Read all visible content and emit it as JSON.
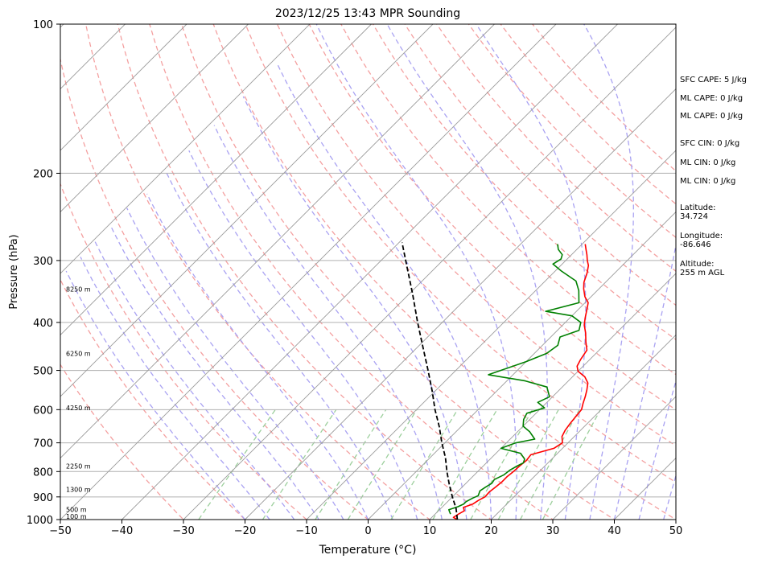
{
  "chart_data": {
    "type": "line",
    "title": "2023/12/25 13:43 MPR Sounding",
    "xlabel": "Temperature (°C)",
    "ylabel": "Pressure (hPa)",
    "xlim": [
      -50,
      50
    ],
    "ylim": [
      1000,
      100
    ],
    "y_scale": "log",
    "grid": true,
    "x_ticks": [
      "−50",
      "−40",
      "−30",
      "−20",
      "−10",
      "0",
      "10",
      "20",
      "30",
      "40",
      "50"
    ],
    "x_tick_values": [
      -50,
      -40,
      -30,
      -20,
      -10,
      0,
      10,
      20,
      30,
      40,
      50
    ],
    "y_ticks": [
      "100",
      "200",
      "300",
      "400",
      "500",
      "600",
      "700",
      "800",
      "900",
      "1000"
    ],
    "y_tick_values": [
      100,
      200,
      300,
      400,
      500,
      600,
      700,
      800,
      900,
      1000
    ],
    "height_labels": [
      {
        "text": "100 m",
        "p": 985
      },
      {
        "text": "500 m",
        "p": 955
      },
      {
        "text": "1300 m",
        "p": 870
      },
      {
        "text": "2250 m",
        "p": 780
      },
      {
        "text": "4250 m",
        "p": 595
      },
      {
        "text": "6250 m",
        "p": 462
      },
      {
        "text": "8250 m",
        "p": 343
      }
    ],
    "series": [
      {
        "color": "#ff0000",
        "points": [
          [
            14.5,
            1000
          ],
          [
            13.5,
            990
          ],
          [
            13.8,
            975
          ],
          [
            14.2,
            960
          ],
          [
            13.5,
            945
          ],
          [
            14.5,
            930
          ],
          [
            14.8,
            915
          ],
          [
            15.3,
            900
          ],
          [
            15.2,
            880
          ],
          [
            15.4,
            860
          ],
          [
            15.6,
            840
          ],
          [
            15.6,
            820
          ],
          [
            15.8,
            800
          ],
          [
            15.9,
            780
          ],
          [
            16.1,
            760
          ],
          [
            15.9,
            740
          ],
          [
            18.6,
            718
          ],
          [
            19.1,
            700
          ],
          [
            18.0,
            680
          ],
          [
            17.5,
            660
          ],
          [
            17.2,
            640
          ],
          [
            17.0,
            620
          ],
          [
            16.8,
            600
          ],
          [
            16.0,
            582
          ],
          [
            15.3,
            565
          ],
          [
            14.5,
            548
          ],
          [
            13.5,
            530
          ],
          [
            12.0,
            515
          ],
          [
            10.0,
            502
          ],
          [
            9.0,
            490
          ],
          [
            8.5,
            475
          ],
          [
            8.0,
            455
          ],
          [
            6.5,
            438
          ],
          [
            5.0,
            420
          ],
          [
            3.5,
            405
          ],
          [
            2.5,
            392
          ],
          [
            1.5,
            378
          ],
          [
            0.5,
            365
          ],
          [
            -1.0,
            355
          ],
          [
            -2.5,
            342
          ],
          [
            -3.5,
            332
          ],
          [
            -4.5,
            318
          ],
          [
            -5.5,
            307
          ],
          [
            -6.5,
            300
          ],
          [
            -7.5,
            292
          ],
          [
            -8.5,
            285
          ],
          [
            -9.5,
            278
          ]
        ]
      },
      {
        "color": "#008000",
        "points": [
          [
            12.5,
            975
          ],
          [
            12.0,
            965
          ],
          [
            11.5,
            955
          ],
          [
            12.5,
            942
          ],
          [
            13.0,
            930
          ],
          [
            13.0,
            920
          ],
          [
            13.5,
            905
          ],
          [
            14.0,
            895
          ],
          [
            13.5,
            875
          ],
          [
            13.8,
            860
          ],
          [
            14.2,
            845
          ],
          [
            14.0,
            830
          ],
          [
            14.8,
            812
          ],
          [
            15.0,
            795
          ],
          [
            15.5,
            780
          ],
          [
            16.0,
            768
          ],
          [
            15.6,
            755
          ],
          [
            14.0,
            735
          ],
          [
            10.0,
            718
          ],
          [
            11.5,
            700
          ],
          [
            14.0,
            688
          ],
          [
            12.0,
            665
          ],
          [
            10.0,
            648
          ],
          [
            9.0,
            628
          ],
          [
            8.5,
            610
          ],
          [
            10.5,
            595
          ],
          [
            8.5,
            580
          ],
          [
            9.5,
            565
          ],
          [
            7.5,
            540
          ],
          [
            3.0,
            525
          ],
          [
            -4.0,
            510
          ],
          [
            0.0,
            480
          ],
          [
            2.0,
            462
          ],
          [
            2.5,
            445
          ],
          [
            1.5,
            428
          ],
          [
            3.5,
            415
          ],
          [
            2.5,
            400
          ],
          [
            0.0,
            388
          ],
          [
            -5.0,
            380
          ],
          [
            -1.0,
            365
          ],
          [
            -3.0,
            345
          ],
          [
            -5.0,
            330
          ],
          [
            -9.0,
            315
          ],
          [
            -11.5,
            305
          ],
          [
            -11.0,
            298
          ],
          [
            -11.5,
            292
          ],
          [
            -13.0,
            285
          ],
          [
            -14.0,
            278
          ]
        ]
      },
      {
        "color": "#000000",
        "dashed": true,
        "points": [
          [
            14.5,
            1000
          ],
          [
            12.5,
            950
          ],
          [
            10.0,
            900
          ],
          [
            7.5,
            850
          ],
          [
            5.0,
            800
          ],
          [
            2.5,
            750
          ],
          [
            -0.5,
            700
          ],
          [
            -3.5,
            650
          ],
          [
            -7.0,
            600
          ],
          [
            -10.5,
            550
          ],
          [
            -14.5,
            500
          ],
          [
            -19.0,
            450
          ],
          [
            -24.0,
            400
          ],
          [
            -29.5,
            350
          ],
          [
            -36.0,
            300
          ],
          [
            -39.5,
            276
          ]
        ]
      }
    ]
  },
  "annotations": {
    "sfc_cape": "SFC CAPE: 5 J/kg",
    "ml_cape_1": "ML CAPE: 0 J/kg",
    "ml_cape_2": "ML CAPE: 0 J/kg",
    "sfc_cin": "SFC CIN: 0 J/kg",
    "ml_cin_1": "ML CIN: 0 J/kg",
    "ml_cin_2": "ML CIN: 0 J/kg",
    "latitude_label": "Latitude:",
    "latitude_value": "34.724",
    "longitude_label": "Longitude:",
    "longitude_value": "-86.646",
    "altitude_label": "Altitude:",
    "altitude_value": "255 m AGL"
  },
  "colors": {
    "dry_adiabat": "#f4a0a0",
    "moist_adiabat": "#a9a2f2",
    "mixing_ratio": "#9ccf9c",
    "isotherm": "#9a9a9a"
  }
}
